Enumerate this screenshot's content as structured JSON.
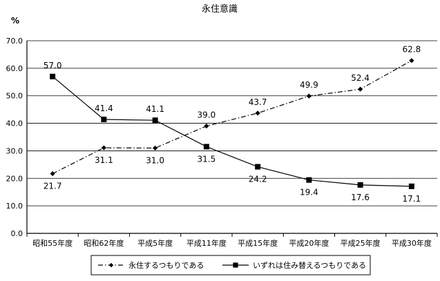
{
  "chart_data": {
    "type": "line",
    "title": "永住意識",
    "ylabel": "%",
    "xlabel": "",
    "ylim": [
      0,
      70
    ],
    "yticks": [
      "0.0",
      "10.0",
      "20.0",
      "30.0",
      "40.0",
      "50.0",
      "60.0",
      "70.0"
    ],
    "ytick_values": [
      0,
      10,
      20,
      30,
      40,
      50,
      60,
      70
    ],
    "grid": true,
    "legend_position": "bottom",
    "categories": [
      "昭和55年度",
      "昭和62年度",
      "平成5年度",
      "平成11年度",
      "平成15年度",
      "平成20年度",
      "平成25年度",
      "平成30年度"
    ],
    "series": [
      {
        "name": "永住するつもりである",
        "values": [
          21.7,
          31.1,
          31.0,
          39.0,
          43.7,
          49.9,
          52.4,
          62.8
        ],
        "labels": [
          "21.7",
          "31.1",
          "31.0",
          "39.0",
          "43.7",
          "49.9",
          "52.4",
          "62.8"
        ],
        "label_side": [
          "below",
          "below",
          "below",
          "above",
          "above",
          "above",
          "above",
          "above"
        ],
        "marker": "diamond",
        "line_style": "dash-dot",
        "color": "#000000"
      },
      {
        "name": "いずれは住み替えるつもりである",
        "values": [
          57.0,
          41.4,
          41.1,
          31.5,
          24.2,
          19.4,
          17.6,
          17.1
        ],
        "labels": [
          "57.0",
          "41.4",
          "41.1",
          "31.5",
          "24.2",
          "19.4",
          "17.6",
          "17.1"
        ],
        "label_side": [
          "above",
          "above",
          "above",
          "below",
          "below",
          "below",
          "below",
          "below"
        ],
        "marker": "square",
        "line_style": "solid",
        "color": "#000000"
      }
    ]
  }
}
